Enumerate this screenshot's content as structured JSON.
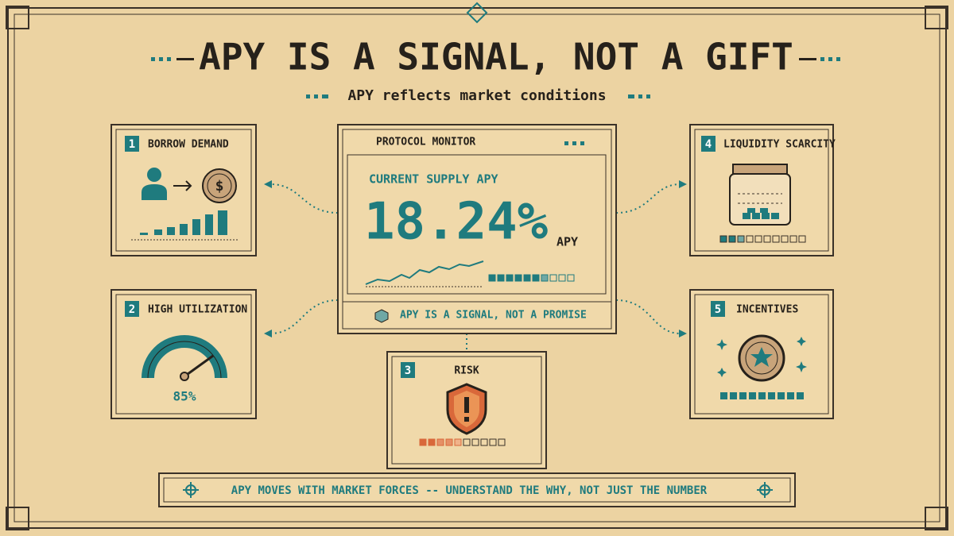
{
  "header": {
    "title": "APY IS A SIGNAL, NOT A GIFT",
    "subtitle": "APY reflects market conditions"
  },
  "monitor": {
    "label": "PROTOCOL MONITOR",
    "metric_label": "CURRENT SUPPLY APY",
    "value": "18.24%",
    "unit": "APY",
    "note": "APY IS A SIGNAL, NOT A PROMISE"
  },
  "cards": [
    {
      "number": "1",
      "title": "BORROW DEMAND"
    },
    {
      "number": "2",
      "title": "HIGH UTILIZATION",
      "value": "85%"
    },
    {
      "number": "3",
      "title": "RISK"
    },
    {
      "number": "4",
      "title": "LIQUIDITY SCARCITY"
    },
    {
      "number": "5",
      "title": "INCENTIVES"
    }
  ],
  "footer": {
    "text": "APY MOVES WITH MARKET FORCES -- UNDERSTAND THE WHY, NOT JUST THE NUMBER"
  }
}
